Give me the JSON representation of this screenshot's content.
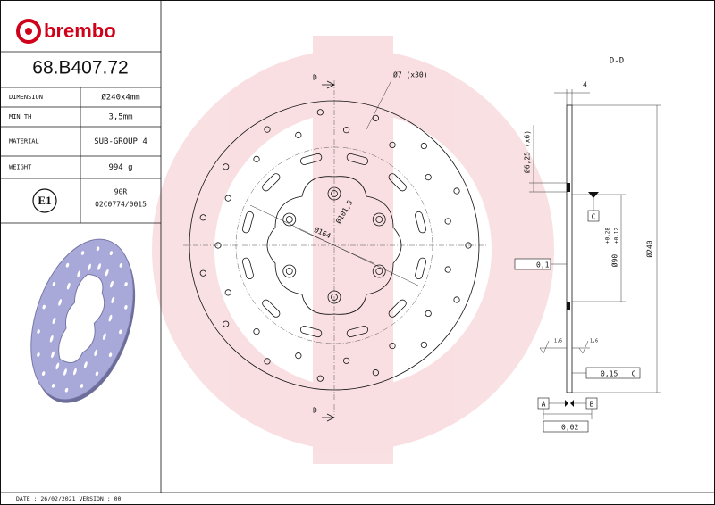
{
  "logo": "brembo",
  "part_number": "68.B407.72",
  "specs": [
    {
      "label": "DIMENSION",
      "value": "Ø240x4mm"
    },
    {
      "label": "MIN TH",
      "value": "3,5mm"
    },
    {
      "label": "MATERIAL",
      "value": "SUB-GROUP 4"
    },
    {
      "label": "WEIGHT",
      "value": "994 g"
    }
  ],
  "homologation": {
    "mark": "E1",
    "code": "90R",
    "number": "02C0774/0015"
  },
  "drawing": {
    "section_marks": [
      "D",
      "D"
    ],
    "holes": "Ø7 (x30)",
    "diameters": [
      "Ø164",
      "Ø101,5"
    ],
    "section_title": "D-D",
    "side": {
      "thickness": "4",
      "mount_holes": "Ø6,25 (x6)",
      "datum_c": "C",
      "center_bore": "Ø90",
      "tol_upper": "+0,28",
      "tol_lower": "+0,12",
      "outer": "Ø240",
      "flatness": "0,1",
      "roughness": [
        "1,6",
        "1,6"
      ],
      "runout": "0,15",
      "runout_datum": "C",
      "datums": [
        "A",
        "B"
      ],
      "parallelism": "0,02"
    }
  },
  "footer": "DATE : 26/02/2021 VERSION : 00"
}
